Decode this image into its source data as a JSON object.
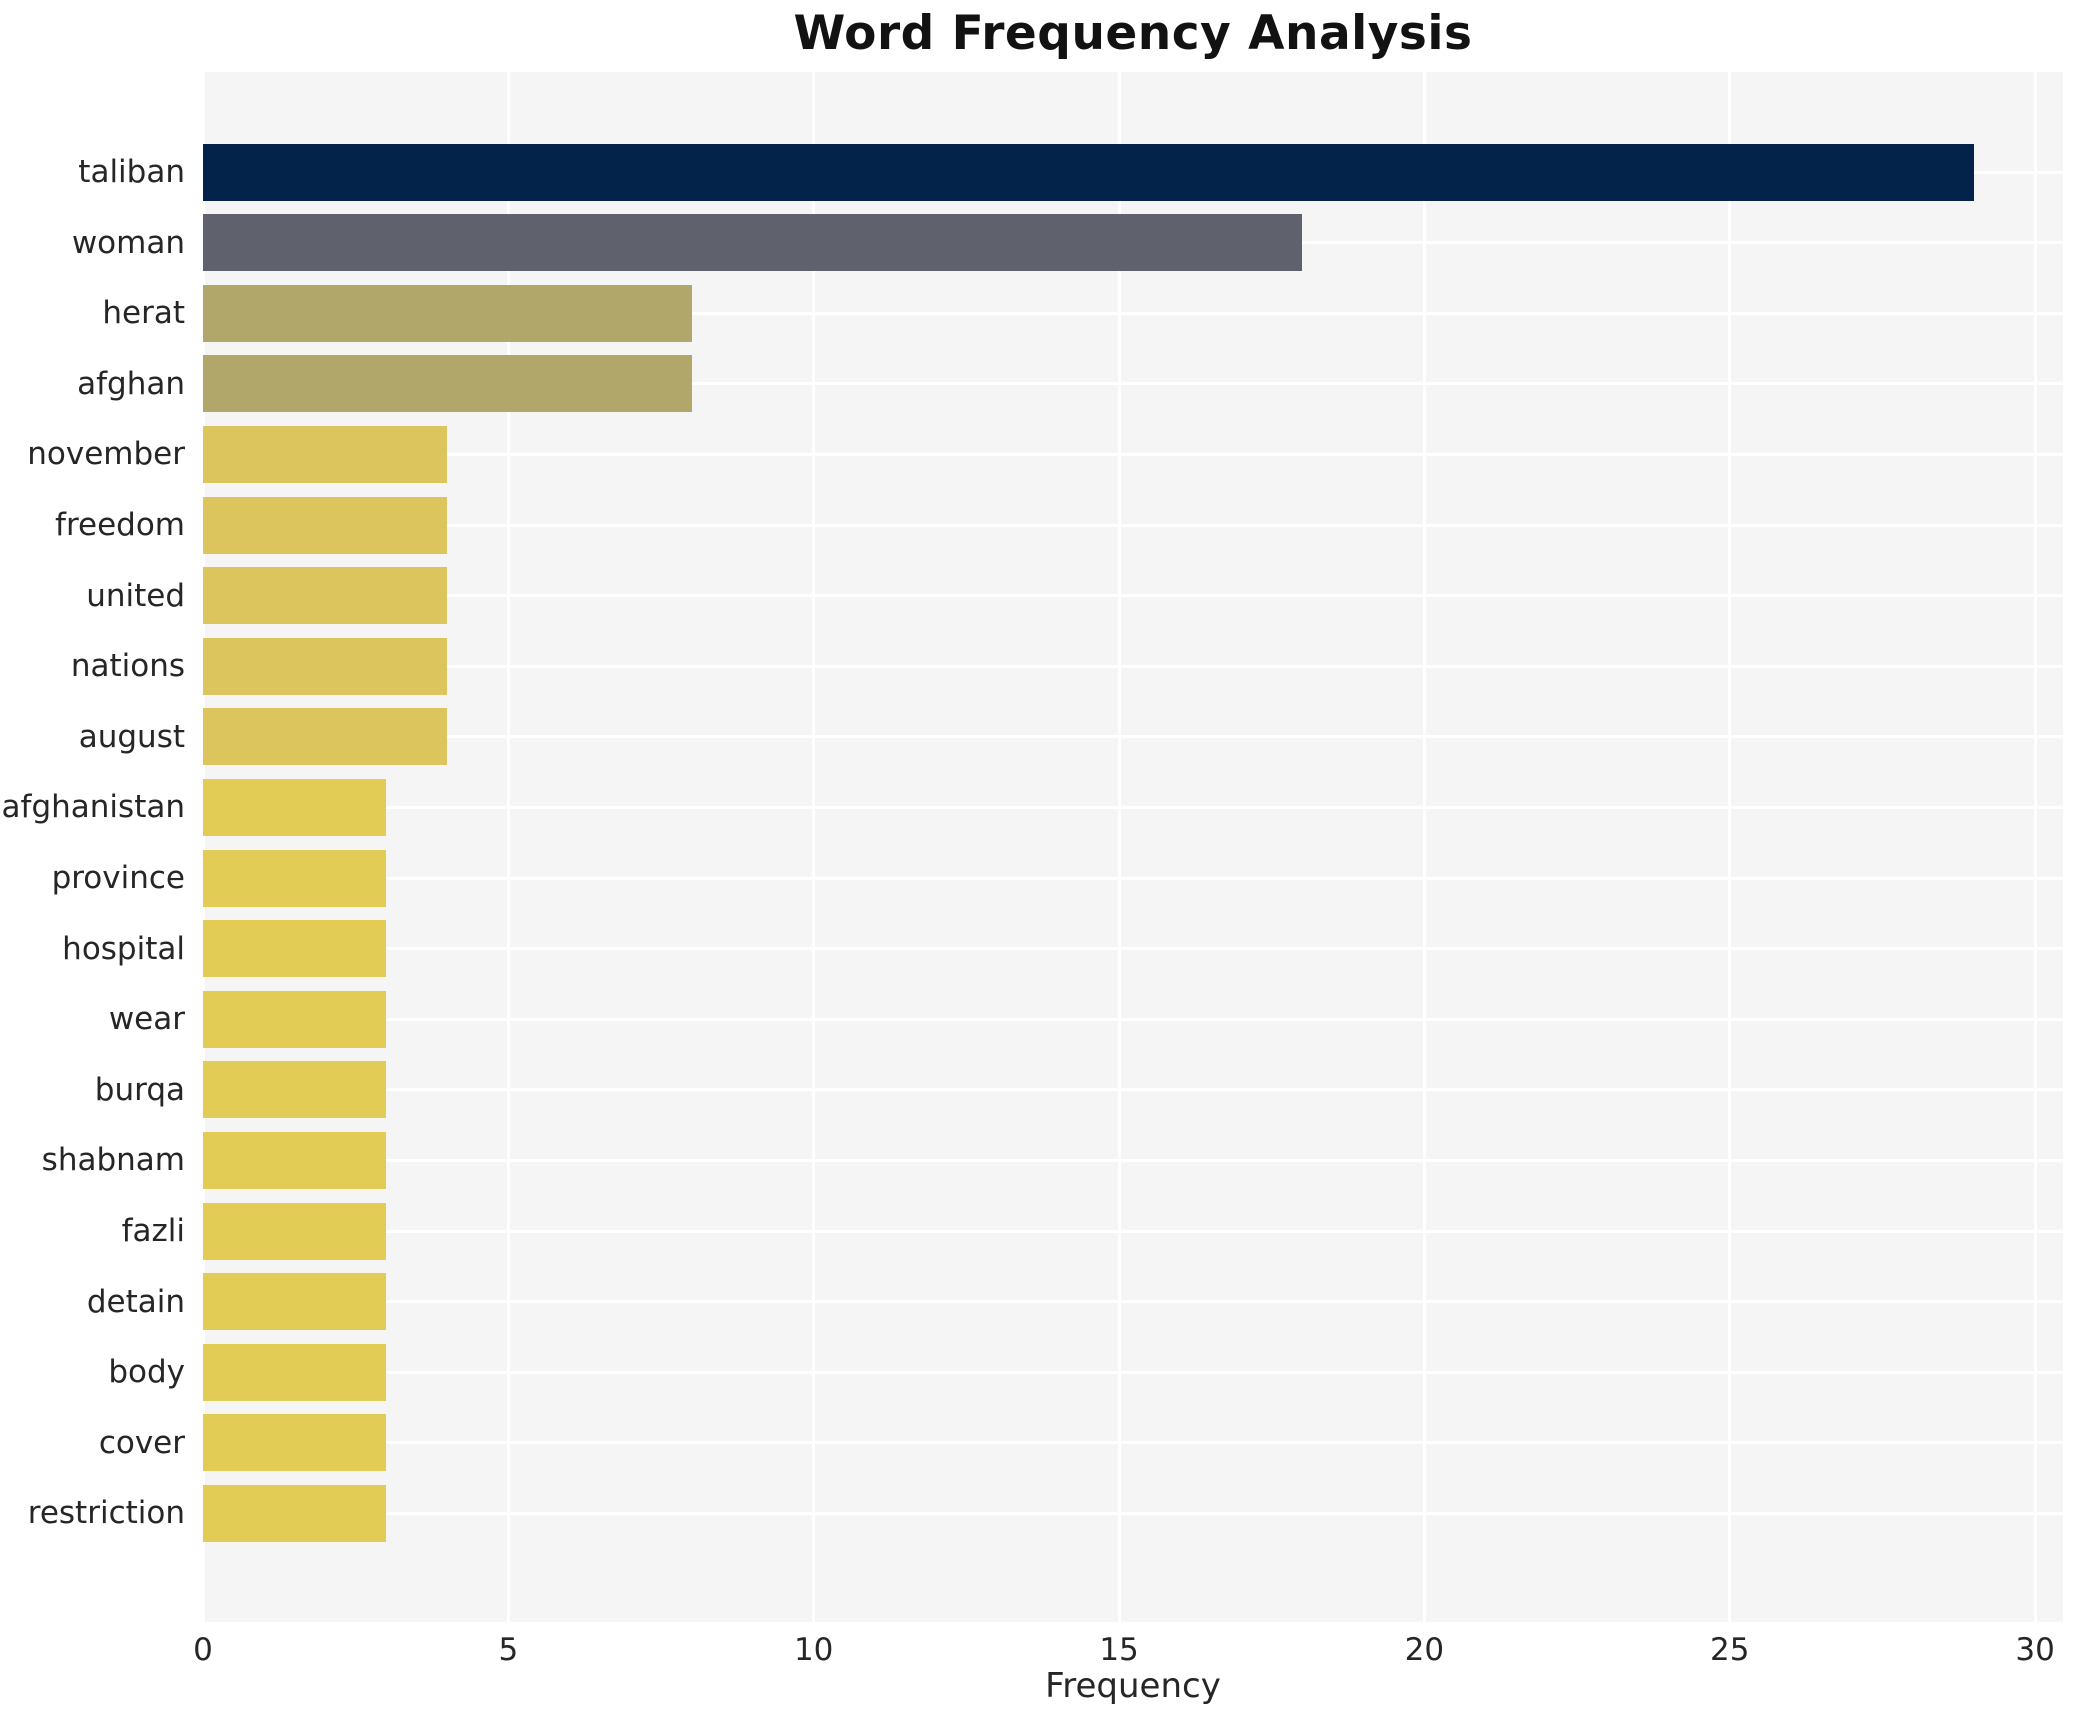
{
  "chart_data": {
    "type": "bar",
    "orientation": "horizontal",
    "title": "Word Frequency Analysis",
    "xlabel": "Frequency",
    "ylabel": "",
    "categories": [
      "taliban",
      "woman",
      "herat",
      "afghan",
      "november",
      "freedom",
      "united",
      "nations",
      "august",
      "afghanistan",
      "province",
      "hospital",
      "wear",
      "burqa",
      "shabnam",
      "fazli",
      "detain",
      "body",
      "cover",
      "restriction"
    ],
    "values": [
      29,
      18,
      8,
      8,
      4,
      4,
      4,
      4,
      4,
      3,
      3,
      3,
      3,
      3,
      3,
      3,
      3,
      3,
      3,
      3
    ],
    "bar_colors": [
      "#03234b",
      "#5f626d",
      "#b2a76b",
      "#b2a76b",
      "#dcc55d",
      "#dcc55d",
      "#dcc55d",
      "#dcc55d",
      "#dcc55d",
      "#e3cc55",
      "#e3cc55",
      "#e3cc55",
      "#e3cc55",
      "#e3cc55",
      "#e3cc55",
      "#e3cc55",
      "#e3cc55",
      "#e3cc55",
      "#e3cc55",
      "#e3cc55"
    ],
    "x_ticks": [
      0,
      5,
      10,
      15,
      20,
      25,
      30
    ],
    "xlim": [
      0,
      30.45
    ],
    "grid": true,
    "legend": "none",
    "colors": {
      "plot_background": "#f5f5f6",
      "gridline": "#ffffff",
      "page_background": "#ffffff",
      "text": "#262626",
      "title_text": "#121212"
    }
  }
}
